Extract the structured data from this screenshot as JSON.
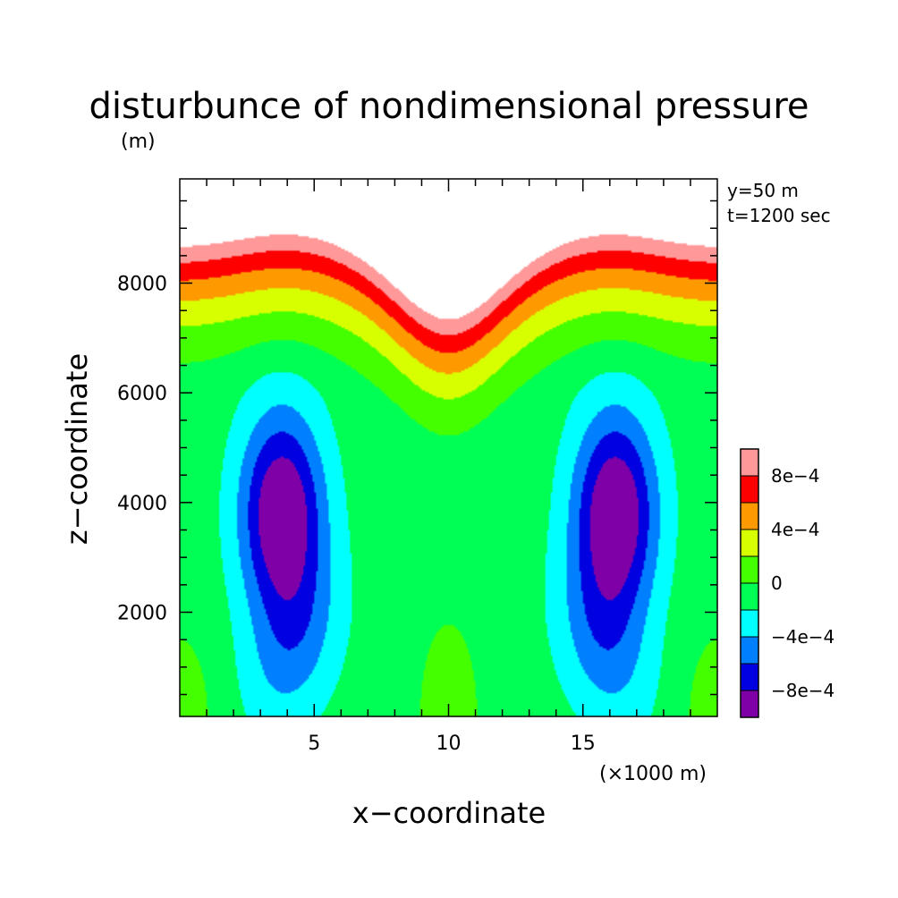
{
  "chart_data": {
    "type": "heatmap",
    "title": "disturbunce of nondimensional pressure",
    "units": "(m)",
    "xlabel": "x−coordinate",
    "xunit": "(×1000 m)",
    "ylabel": "z−coordinate",
    "info": [
      "y=50 m",
      "t=1200 sec"
    ],
    "xlim": [
      0,
      20
    ],
    "ylim": [
      100,
      9900
    ],
    "x_ticks": [
      5,
      10,
      15
    ],
    "x_tick_labels": [
      "5",
      "10",
      "15"
    ],
    "y_ticks": [
      2000,
      4000,
      6000,
      8000
    ],
    "y_tick_labels": [
      "2000",
      "4000",
      "6000",
      "8000"
    ],
    "colorbar": {
      "labels": [
        "8e−4",
        "4e−4",
        "0",
        "−4e−4",
        "−8e−4"
      ],
      "label_levels": [
        0.0008,
        0.0004,
        0,
        -0.0004,
        -0.0008
      ],
      "levels": [
        -0.001,
        -0.0008,
        -0.0006,
        -0.0004,
        -0.0002,
        0,
        0.0002,
        0.0004,
        0.0006,
        0.0008,
        0.001,
        0.0012
      ],
      "colors": [
        "#8000a8",
        "#0000e0",
        "#0080ff",
        "#00ffff",
        "#00ff55",
        "#44ff00",
        "#d8ff00",
        "#ff9900",
        "#ff0000",
        "#ff9999",
        "#ffffff"
      ]
    },
    "field": {
      "description": "sampled estimate of contour field",
      "background": -0.0001,
      "features": [
        {
          "type": "lobe",
          "x": 3.8,
          "z": 3800,
          "amp": -0.00095
        },
        {
          "type": "lobe",
          "x": 16.2,
          "z": 3800,
          "amp": -0.00095
        },
        {
          "type": "top",
          "z_center": 9900,
          "amp": 0.001
        }
      ]
    }
  }
}
